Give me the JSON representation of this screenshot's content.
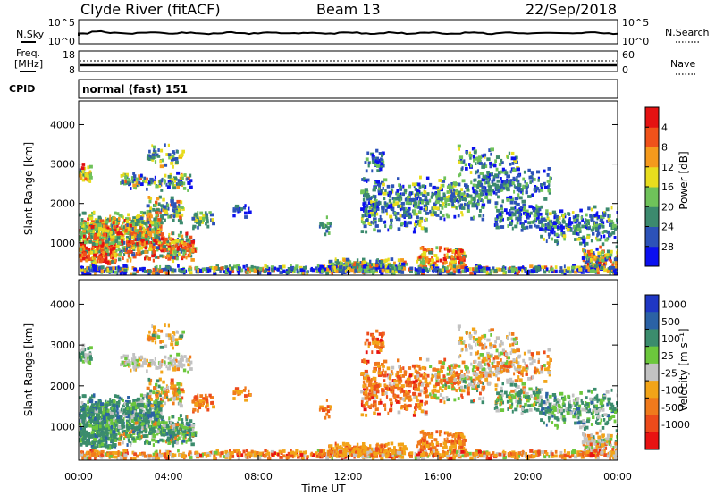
{
  "header": {
    "station": "Clyde River (fitACF)",
    "beam": "Beam 13",
    "date": "22/Sep/2018"
  },
  "noise_panel": {
    "left_label": "N.Sky",
    "right_label": "N.Search",
    "left_ticks": [
      "10^5",
      "10^0"
    ],
    "right_ticks": [
      "10^5",
      "10^0"
    ]
  },
  "freq_panel": {
    "left_label_line1": "Freq.",
    "left_label_line2": "[MHz]",
    "left_ticks": [
      "18",
      "8"
    ],
    "right_label": "Nave",
    "right_ticks": [
      "60",
      "0"
    ]
  },
  "cpid_panel": {
    "label": "CPID",
    "value": "normal (fast) 151"
  },
  "chart_data": [
    {
      "type": "heatmap",
      "quantity": "power",
      "ylabel": "Slant Range [km]",
      "xlabel": "",
      "ylim": [
        180,
        4600
      ],
      "yticks": [
        "1000",
        "2000",
        "3000",
        "4000"
      ],
      "colorbar_label": "Power [dB]",
      "colorbar_ticks": [
        "4",
        "8",
        "12",
        "16",
        "20",
        "24",
        "28"
      ],
      "colorbar_colors": [
        "#0b10f0",
        "#2c52b8",
        "#3c8a6e",
        "#6fc25a",
        "#e8dd1e",
        "#f59a1c",
        "#f0521a",
        "#e51212"
      ]
    },
    {
      "type": "heatmap",
      "quantity": "velocity",
      "ylabel": "Slant Range [km]",
      "xlabel": "Time UT",
      "ylim": [
        180,
        4600
      ],
      "yticks": [
        "1000",
        "2000",
        "3000",
        "4000"
      ],
      "xticks": [
        "00:00",
        "04:00",
        "08:00",
        "12:00",
        "16:00",
        "20:00",
        "00:00"
      ],
      "colorbar_label": "Velocity [m s⁻¹]",
      "colorbar_ticks": [
        "1000",
        "500",
        "100",
        "25",
        "-25",
        "-100",
        "-500",
        "-1000"
      ],
      "colorbar_colors": [
        "#1f37c4",
        "#2b62a5",
        "#3b8c6d",
        "#6cc73c",
        "#c2c2c2",
        "#f2a418",
        "#f07a1c",
        "#ed4b1b",
        "#e81212"
      ]
    }
  ]
}
